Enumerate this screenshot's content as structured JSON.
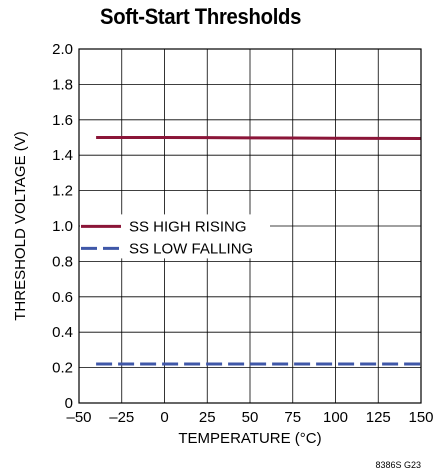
{
  "chart_data": {
    "type": "line",
    "title": "Soft-Start Thresholds",
    "xlabel": "TEMPERATURE (°C)",
    "ylabel": "THRESHOLD VOLTAGE (V)",
    "xlim": [
      -50,
      150
    ],
    "ylim": [
      0,
      2.0
    ],
    "xticks": [
      -50,
      -25,
      0,
      25,
      50,
      75,
      100,
      125,
      150
    ],
    "xtick_labels": [
      "–50",
      "–25",
      "0",
      "25",
      "50",
      "75",
      "100",
      "125",
      "150"
    ],
    "yticks": [
      0,
      0.2,
      0.4,
      0.6,
      0.8,
      1.0,
      1.2,
      1.4,
      1.6,
      1.8,
      2.0
    ],
    "ytick_labels": [
      "0",
      "0.2",
      "0.4",
      "0.6",
      "0.8",
      "1.0",
      "1.2",
      "1.4",
      "1.6",
      "1.8",
      "2.0"
    ],
    "grid": true,
    "legend_position": "middle-left",
    "series": [
      {
        "name": "SS HIGH RISING",
        "color": "#8b1538",
        "style": "solid",
        "x": [
          -40,
          0,
          25,
          50,
          75,
          100,
          125,
          150
        ],
        "y": [
          1.5,
          1.5,
          1.499,
          1.498,
          1.497,
          1.496,
          1.495,
          1.494
        ]
      },
      {
        "name": "SS LOW FALLING",
        "color": "#3f57a8",
        "style": "dashed",
        "x": [
          -40,
          0,
          25,
          50,
          75,
          100,
          125,
          150
        ],
        "y": [
          0.22,
          0.22,
          0.22,
          0.22,
          0.22,
          0.22,
          0.22,
          0.22
        ]
      }
    ]
  },
  "figure_code": "8386S G23"
}
